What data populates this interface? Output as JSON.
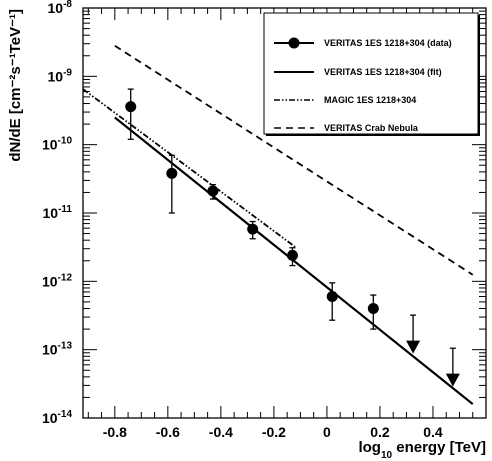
{
  "chart_data": {
    "type": "scatter",
    "title": "",
    "xlabel": "log",
    "xlabel_sub": "10",
    "xlabel_rest": " energy [TeV]",
    "ylabel": "dN/dE [cm⁻²s⁻¹TeV⁻¹]",
    "xlim": [
      -0.92,
      0.6
    ],
    "ylim_log10": [
      -14,
      -8
    ],
    "y_scale": "log",
    "x_ticks": [
      -0.8,
      -0.6,
      -0.4,
      -0.2,
      0,
      0.2,
      0.4
    ],
    "x_tick_labels": [
      "-0.8",
      "-0.6",
      "-0.4",
      "-0.2",
      "0",
      "0.2",
      "0.4"
    ],
    "y_tick_labels": [
      {
        "base": "10",
        "exp": "-14",
        "value": -14
      },
      {
        "base": "10",
        "exp": "-13",
        "value": -13
      },
      {
        "base": "10",
        "exp": "-12",
        "value": -12
      },
      {
        "base": "10",
        "exp": "-11",
        "value": -11
      },
      {
        "base": "10",
        "exp": "-10",
        "value": -10
      },
      {
        "base": "10",
        "exp": "-9",
        "value": -9
      },
      {
        "base": "10",
        "exp": "-8",
        "value": -8
      }
    ],
    "legend_position": "top-right",
    "series": [
      {
        "name": "VERITAS 1ES 1218+304 (data)",
        "kind": "points",
        "points": [
          {
            "x": -0.74,
            "y": 3.6e-10,
            "ylo": 1.2e-10,
            "yhi": 6.5e-10
          },
          {
            "x": -0.585,
            "y": 3.8e-11,
            "ylo": 1e-11,
            "yhi": 7e-11
          },
          {
            "x": -0.43,
            "y": 2.1e-11,
            "ylo": 1.6e-11,
            "yhi": 2.6e-11
          },
          {
            "x": -0.28,
            "y": 5.8e-12,
            "ylo": 4.2e-12,
            "yhi": 7.5e-12
          },
          {
            "x": -0.13,
            "y": 2.4e-12,
            "ylo": 1.7e-12,
            "yhi": 3.1e-12
          },
          {
            "x": 0.02,
            "y": 6e-13,
            "ylo": 2.7e-13,
            "yhi": 9.5e-13
          },
          {
            "x": 0.175,
            "y": 4e-13,
            "ylo": 2e-13,
            "yhi": 6.3e-13
          }
        ]
      },
      {
        "name": "upper limits",
        "kind": "upper-limits",
        "points": [
          {
            "x": 0.325,
            "y": 1e-13,
            "yhi": 3.2e-13
          },
          {
            "x": 0.475,
            "y": 3.3e-14,
            "yhi": 1.05e-13
          }
        ]
      },
      {
        "name": "VERITAS 1ES 1218+304 (fit)",
        "kind": "line",
        "style": "solid",
        "x": [
          -0.8,
          0.55
        ],
        "y": [
          2.5e-10,
          1.6e-14
        ]
      },
      {
        "name": "MAGIC 1ES 1218+304",
        "kind": "line",
        "style": "dash-dot-dot",
        "x": [
          -0.92,
          -0.12
        ],
        "y": [
          6.5e-10,
          3.2e-12
        ]
      },
      {
        "name": "VERITAS Crab Nebula",
        "kind": "line",
        "style": "dashed",
        "x": [
          -0.8,
          0.55
        ],
        "y": [
          2.8e-09,
          1.25e-12
        ]
      }
    ],
    "legend": [
      {
        "label": "VERITAS 1ES 1218+304 (data)",
        "style": "marker-line"
      },
      {
        "label": "VERITAS 1ES 1218+304 (fit)",
        "style": "solid"
      },
      {
        "label": "MAGIC 1ES 1218+304",
        "style": "dash-dot-dot"
      },
      {
        "label": "VERITAS Crab Nebula",
        "style": "dashed"
      }
    ]
  }
}
